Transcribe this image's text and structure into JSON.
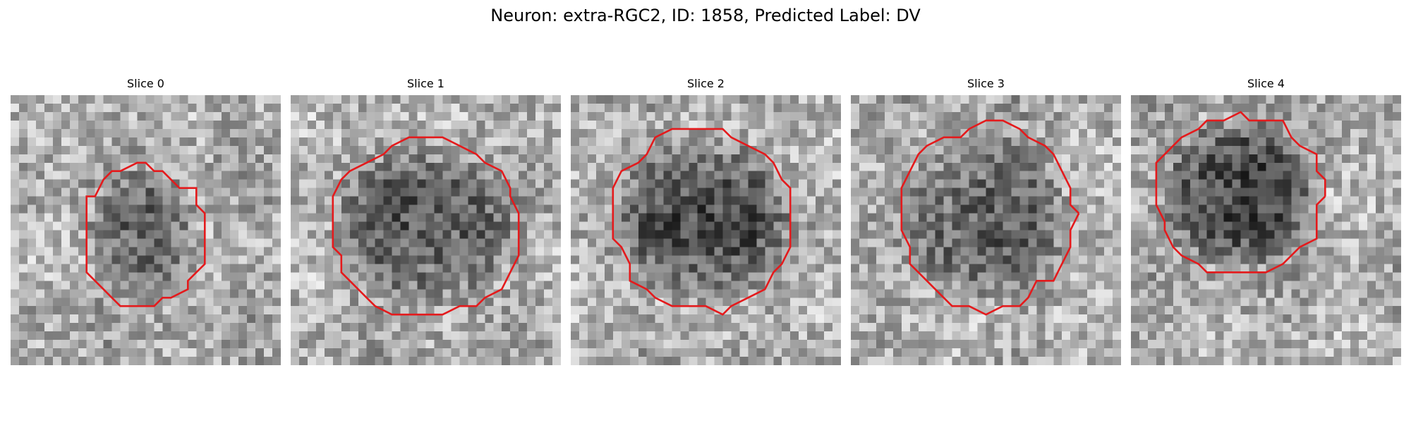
{
  "figure": {
    "title": "Neuron: extra-RGC2, ID: 1858, Predicted Label: DV"
  },
  "colors": {
    "contour": "#e41a1c",
    "background": "#ffffff",
    "text": "#000000"
  },
  "slices": [
    {
      "title": "Slice 0",
      "image": "grayscale noisy micrograph patch with dark roundish cell body outlined by red contour"
    },
    {
      "title": "Slice 1",
      "image": "grayscale noisy micrograph patch with large dark cell body outlined by red contour"
    },
    {
      "title": "Slice 2",
      "image": "grayscale noisy micrograph patch with large dark cell body outlined by red contour"
    },
    {
      "title": "Slice 3",
      "image": "grayscale noisy micrograph patch with dark cell body outlined by red contour"
    },
    {
      "title": "Slice 4",
      "image": "grayscale noisy micrograph patch with dark cell body outlined by red contour"
    }
  ]
}
